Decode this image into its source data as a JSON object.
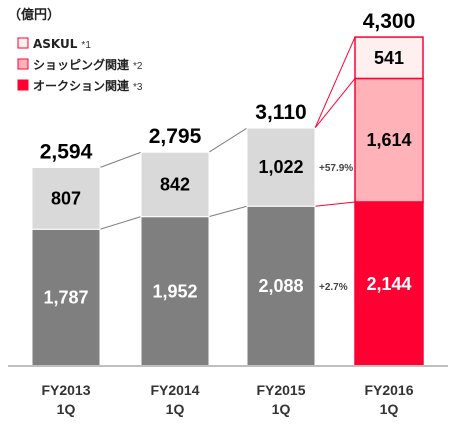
{
  "chart_data": {
    "type": "bar",
    "stacked": true,
    "unit_label": "（億円）",
    "categories": [
      {
        "line1": "FY2013",
        "line2": "1Q"
      },
      {
        "line1": "FY2014",
        "line2": "1Q"
      },
      {
        "line1": "FY2015",
        "line2": "1Q"
      },
      {
        "line1": "FY2016",
        "line2": "1Q"
      }
    ],
    "series": [
      {
        "name": "オークション関連",
        "note": "*3",
        "values": [
          1787,
          1952,
          2088,
          2144
        ],
        "colors": [
          "#7f7f7f",
          "#7f7f7f",
          "#7f7f7f",
          "#ff0033"
        ],
        "label_color": "#ffffff"
      },
      {
        "name": "ショッピング関連",
        "note": "*2",
        "values": [
          807,
          842,
          1022,
          1614
        ],
        "colors": [
          "#d9d9d9",
          "#d9d9d9",
          "#d9d9d9",
          "#ffb3b8"
        ],
        "label_color": "#000000"
      },
      {
        "name": "ASKUL",
        "note": "*1",
        "values": [
          0,
          0,
          0,
          541
        ],
        "colors": [
          "#ffffff",
          "#ffffff",
          "#ffffff",
          "#fff0f0"
        ],
        "label_color": "#000000"
      }
    ],
    "value_labels": [
      [
        "1,787",
        "1,952",
        "2,088",
        "2,144"
      ],
      [
        "807",
        "842",
        "1,022",
        "1,614"
      ],
      [
        "",
        "",
        "",
        "541"
      ]
    ],
    "totals": [
      "2,594",
      "2,795",
      "3,110",
      "4,300"
    ],
    "growth_annotations": [
      {
        "text": "+57.9%",
        "series_index": 1
      },
      {
        "text": "+2.7%",
        "series_index": 0
      }
    ],
    "legend": [
      {
        "label": "ASKUL",
        "note": "*1",
        "fill": "#fff0f0",
        "stroke": "#ff0033"
      },
      {
        "label": "ショッピング関連",
        "note": "*2",
        "fill": "#ffb3b8",
        "stroke": "#ff0033"
      },
      {
        "label": "オークション関連",
        "note": "*3",
        "fill": "#ff0033",
        "stroke": "#ff0033"
      }
    ],
    "ylim": [
      0,
      4300
    ],
    "grid": false,
    "legend_position": "top-left"
  }
}
